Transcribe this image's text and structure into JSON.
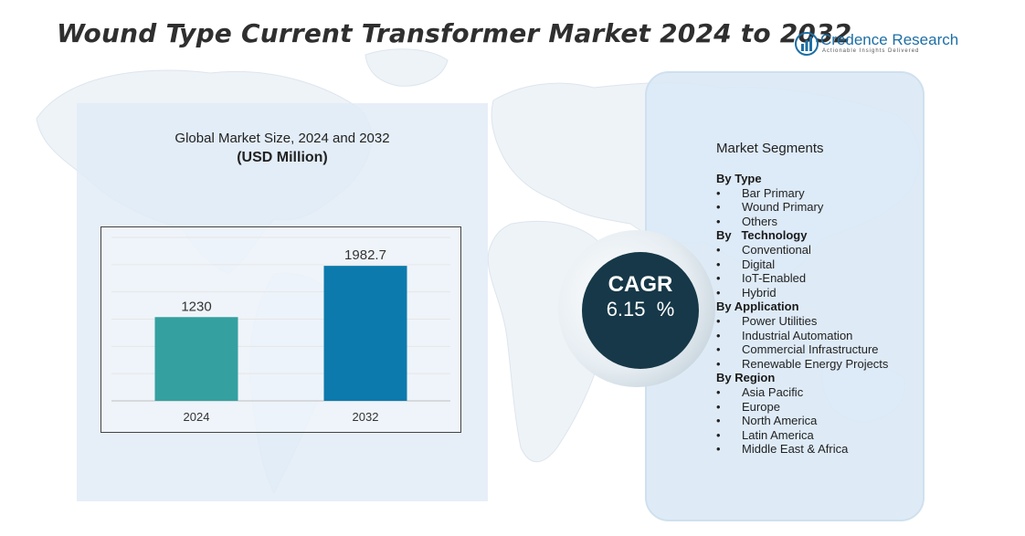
{
  "header": {
    "title": "Wound Type Current Transformer Market 2024 to 2032",
    "logo_name": "Credence Research",
    "logo_tagline": "Actionable Insights Delivered"
  },
  "chart_panel": {
    "subtitle": "Global Market Size, 2024 and 2032",
    "unit": "(USD Million)"
  },
  "chart_data": {
    "type": "bar",
    "title": "Global Market Size, 2024 and 2032",
    "ylabel": "(USD Million)",
    "xlabel": "",
    "categories": [
      "2024",
      "2032"
    ],
    "values": [
      1230,
      1982.7
    ],
    "value_labels": [
      "1230",
      "1982.7"
    ],
    "colors": [
      "#34a0a0",
      "#0c7aad"
    ],
    "ylim": [
      0,
      2400
    ],
    "grid": true
  },
  "cagr": {
    "label": "CAGR",
    "value": "6.15  %"
  },
  "segments": {
    "heading": "Market Segments",
    "groups": [
      {
        "title": "By Type",
        "items": [
          "Bar Primary",
          "Wound Primary",
          "Others"
        ]
      },
      {
        "title": "By   Technology",
        "items": [
          "Conventional",
          "Digital",
          "IoT-Enabled",
          "Hybrid"
        ]
      },
      {
        "title": "By Application",
        "items": [
          "Power Utilities",
          "Industrial Automation",
          "Commercial Infrastructure",
          "Renewable Energy Projects"
        ]
      },
      {
        "title": "By Region",
        "items": [
          "Asia Pacific",
          "Europe",
          "North America",
          "Latin America",
          "Middle East & Africa"
        ]
      }
    ]
  },
  "colors": {
    "bar_2024": "#34a0a0",
    "bar_2032": "#0c7aad",
    "cagr_circle": "#163848",
    "panel": "#dde9f5",
    "logo": "#1d6fa6"
  }
}
